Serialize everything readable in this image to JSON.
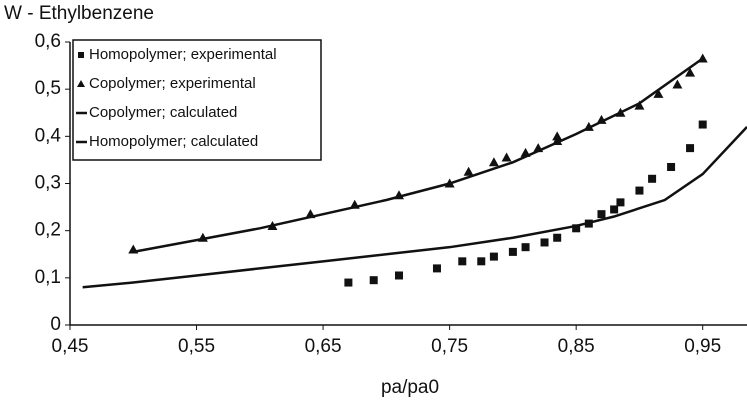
{
  "chart_data": {
    "type": "scatter",
    "title": "W - Ethylbenzene",
    "x_label": "pa/pa0",
    "xlim": [
      0.45,
      0.985
    ],
    "ylim": [
      0,
      0.6
    ],
    "xticks": [
      {
        "value": 0.45,
        "label": "0,45"
      },
      {
        "value": 0.55,
        "label": "0,55"
      },
      {
        "value": 0.65,
        "label": "0,65"
      },
      {
        "value": 0.75,
        "label": "0,75"
      },
      {
        "value": 0.85,
        "label": "0,85"
      },
      {
        "value": 0.95,
        "label": "0,95"
      }
    ],
    "yticks": [
      0,
      {
        "value": 0.1,
        "label": "0,1"
      },
      {
        "value": 0.2,
        "label": "0,2"
      },
      {
        "value": 0.3,
        "label": "0,3"
      },
      {
        "value": 0.4,
        "label": "0,4"
      },
      {
        "value": 0.5,
        "label": "0,5"
      },
      {
        "value": 0.6,
        "label": "0,6"
      }
    ],
    "legend": "upper left",
    "series": [
      {
        "name": "Homopolymer; experimental",
        "marker": "square",
        "color": "#111111",
        "x": [
          0.67,
          0.69,
          0.71,
          0.74,
          0.76,
          0.775,
          0.785,
          0.8,
          0.81,
          0.825,
          0.835,
          0.85,
          0.86,
          0.87,
          0.88,
          0.885,
          0.9,
          0.91,
          0.925,
          0.94,
          0.95
        ],
        "values": [
          0.09,
          0.095,
          0.105,
          0.12,
          0.135,
          0.135,
          0.145,
          0.155,
          0.165,
          0.175,
          0.185,
          0.205,
          0.215,
          0.235,
          0.245,
          0.26,
          0.285,
          0.31,
          0.335,
          0.375,
          0.425
        ]
      },
      {
        "name": "Copolymer; experimental",
        "marker": "triangle",
        "color": "#111111",
        "x": [
          0.5,
          0.555,
          0.61,
          0.64,
          0.675,
          0.71,
          0.75,
          0.765,
          0.785,
          0.795,
          0.81,
          0.82,
          0.835,
          0.835,
          0.86,
          0.87,
          0.885,
          0.9,
          0.915,
          0.93,
          0.94,
          0.95
        ],
        "values": [
          0.16,
          0.185,
          0.21,
          0.235,
          0.255,
          0.275,
          0.3,
          0.325,
          0.345,
          0.355,
          0.365,
          0.375,
          0.39,
          0.4,
          0.42,
          0.435,
          0.45,
          0.465,
          0.49,
          0.51,
          0.535,
          0.565
        ]
      },
      {
        "name": "Copolymer; calculated",
        "marker": "line",
        "color": "#111111",
        "x": [
          0.5,
          0.55,
          0.6,
          0.65,
          0.7,
          0.75,
          0.8,
          0.85,
          0.9,
          0.95
        ],
        "values": [
          0.155,
          0.18,
          0.205,
          0.235,
          0.265,
          0.3,
          0.345,
          0.405,
          0.47,
          0.565
        ]
      },
      {
        "name": "Homopolymer; calculated",
        "marker": "line",
        "color": "#111111",
        "x": [
          0.46,
          0.5,
          0.55,
          0.6,
          0.65,
          0.7,
          0.75,
          0.8,
          0.85,
          0.88,
          0.92,
          0.95,
          0.985
        ],
        "values": [
          0.08,
          0.09,
          0.105,
          0.12,
          0.135,
          0.15,
          0.165,
          0.185,
          0.21,
          0.23,
          0.265,
          0.32,
          0.42
        ]
      }
    ]
  }
}
